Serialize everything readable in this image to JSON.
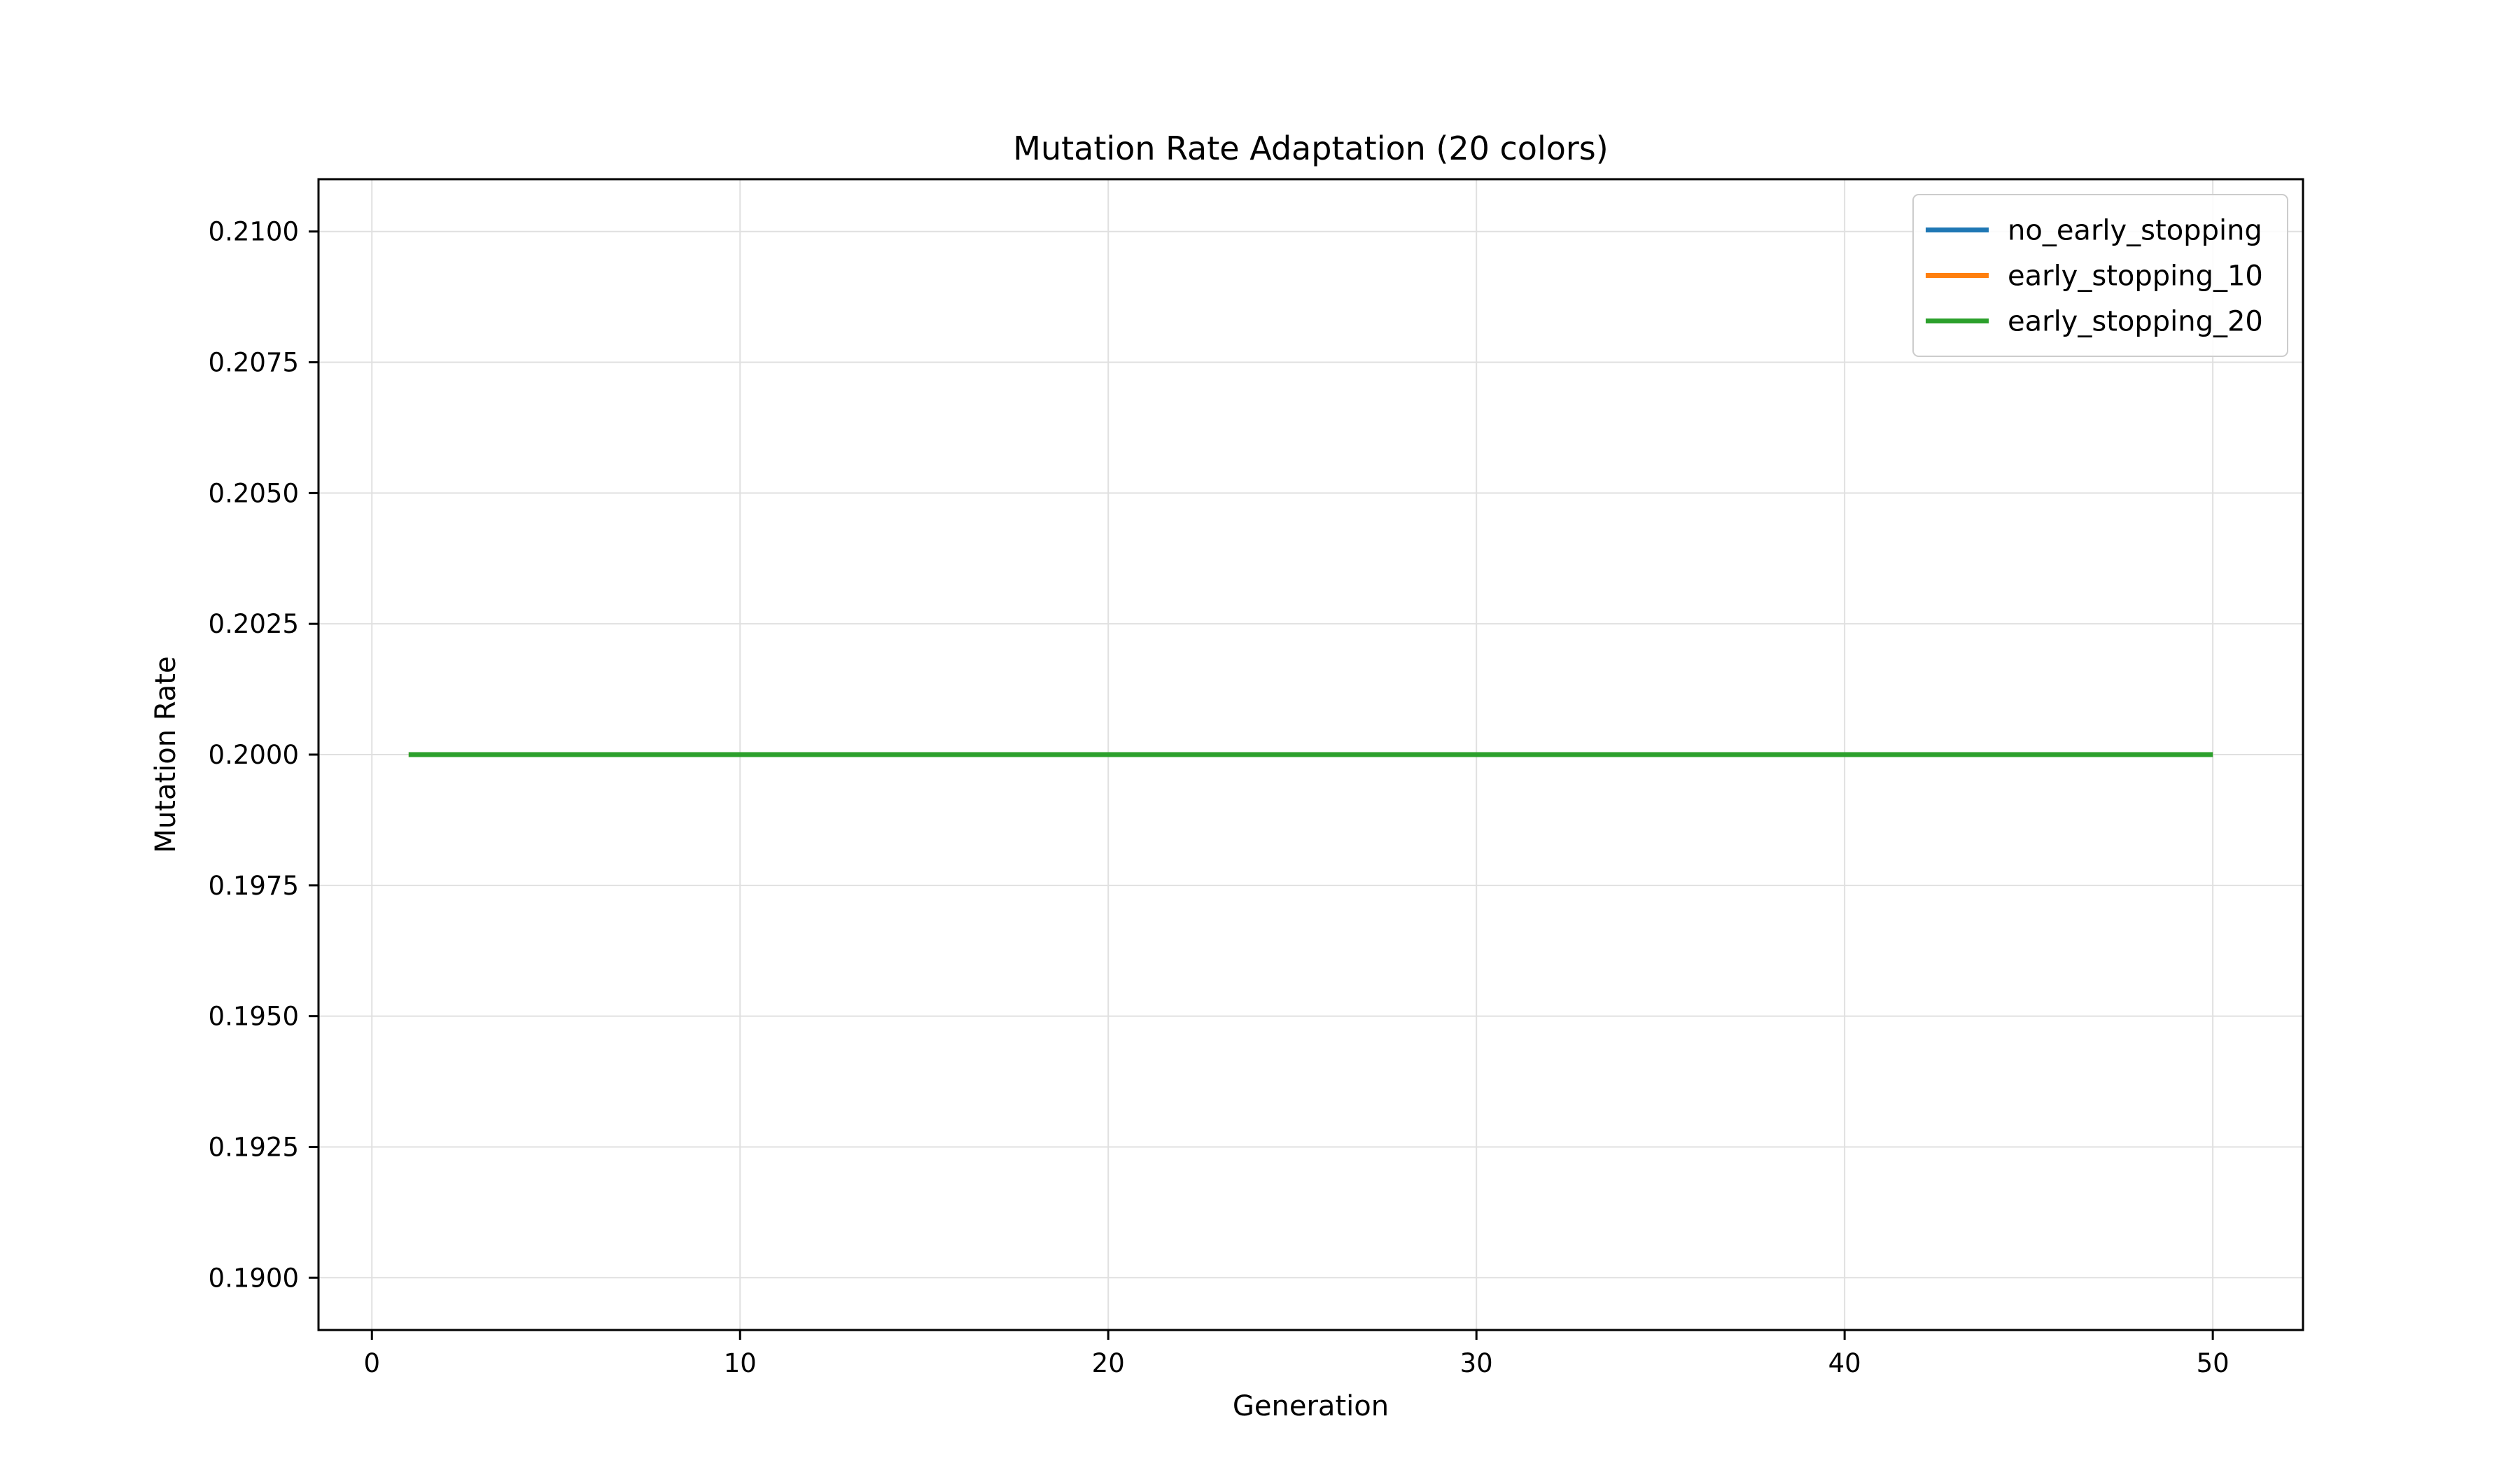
{
  "chart_data": {
    "type": "line",
    "title": "Mutation Rate Adaptation (20 colors)",
    "xlabel": "Generation",
    "ylabel": "Mutation Rate",
    "xlim": [
      -1.45,
      52.45
    ],
    "ylim": [
      0.189,
      0.211
    ],
    "xticks": [
      0,
      10,
      20,
      30,
      40,
      50
    ],
    "yticks": [
      0.19,
      0.1925,
      0.195,
      0.1975,
      0.2,
      0.2025,
      0.205,
      0.2075,
      0.21
    ],
    "ytick_labels": [
      "0.1900",
      "0.1925",
      "0.1950",
      "0.1975",
      "0.2000",
      "0.2025",
      "0.2050",
      "0.2075",
      "0.2100"
    ],
    "grid": true,
    "legend_position": "top-right",
    "series": [
      {
        "name": "no_early_stopping",
        "color": "#1f77b4",
        "x": [
          1,
          50
        ],
        "y": [
          0.2,
          0.2
        ]
      },
      {
        "name": "early_stopping_10",
        "color": "#ff7f0e",
        "x": [
          1,
          50
        ],
        "y": [
          0.2,
          0.2
        ]
      },
      {
        "name": "early_stopping_20",
        "color": "#2ca02c",
        "x": [
          1,
          50
        ],
        "y": [
          0.2,
          0.2
        ]
      }
    ]
  }
}
